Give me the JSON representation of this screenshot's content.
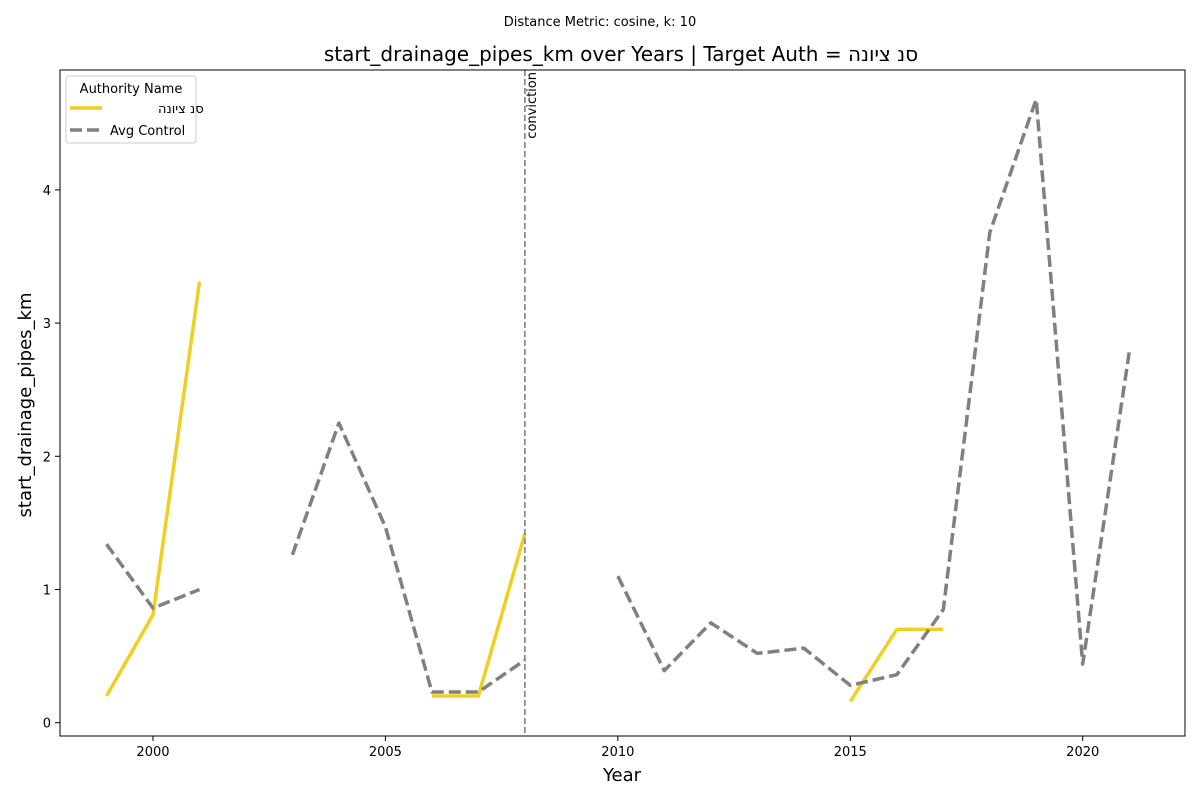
{
  "chart_data": {
    "type": "line",
    "suptitle": "Distance Metric: cosine, k: 10",
    "title": "start_drainage_pipes_km over Years | Target Auth = סנ ציונה",
    "xlabel": "Year",
    "ylabel": "start_drainage_pipes_km",
    "xlim": [
      1998.0,
      2022.2
    ],
    "ylim": [
      -0.1,
      4.9
    ],
    "xticks": [
      2000,
      2005,
      2010,
      2015,
      2020
    ],
    "yticks": [
      0,
      1,
      2,
      3,
      4
    ],
    "grid": false,
    "legend": {
      "title": "Authority Name",
      "placement": "top-left"
    },
    "vline": {
      "x": 2008,
      "label": "conviction",
      "color": "#808080"
    },
    "series": [
      {
        "name": "סנ ציונה",
        "color": "#f0cf20",
        "style": "solid",
        "x": [
          1999,
          2000,
          2001,
          2002,
          2003,
          2004,
          2005,
          2006,
          2007,
          2008,
          2009,
          2010,
          2011,
          2012,
          2013,
          2014,
          2015,
          2016,
          2017,
          2018,
          2019,
          2020,
          2021
        ],
        "y": [
          0.2,
          0.81,
          3.31,
          null,
          null,
          null,
          null,
          0.2,
          0.2,
          1.42,
          null,
          null,
          null,
          null,
          null,
          null,
          0.16,
          0.7,
          0.7,
          null,
          null,
          null,
          null
        ]
      },
      {
        "name": "Avg Control",
        "color": "#808080",
        "style": "dashed",
        "x": [
          1999,
          2000,
          2001,
          2002,
          2003,
          2004,
          2005,
          2006,
          2007,
          2008,
          2009,
          2010,
          2011,
          2012,
          2013,
          2014,
          2015,
          2016,
          2017,
          2018,
          2019,
          2020,
          2021
        ],
        "y": [
          1.34,
          0.86,
          1.0,
          null,
          1.26,
          2.25,
          1.47,
          0.23,
          0.23,
          0.47,
          null,
          1.1,
          0.39,
          0.75,
          0.52,
          0.56,
          0.28,
          0.36,
          0.85,
          3.68,
          4.68,
          0.44,
          2.78
        ]
      }
    ]
  }
}
